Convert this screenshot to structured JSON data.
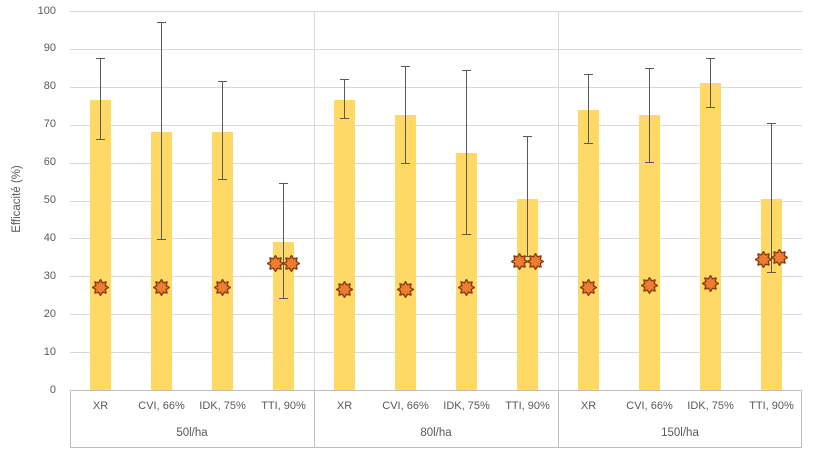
{
  "chart_data": {
    "type": "bar",
    "title": "",
    "ylabel": "Efficacité (%)",
    "xlabel": "",
    "ylim": [
      0,
      100
    ],
    "yticks": [
      0,
      10,
      20,
      30,
      40,
      50,
      60,
      70,
      80,
      90,
      100
    ],
    "grid": "horizontal",
    "legend": "none",
    "bar_color": "#FFD966",
    "error_bar_color": "#595959",
    "marker_fill": "#ED7D31",
    "marker_stroke": "#8A3B10",
    "marker_shape": "8-point-star",
    "groups": [
      {
        "label": "50l/ha",
        "bars": [
          {
            "label": "XR",
            "value": 76.5,
            "err_low": 66,
            "err_high": 87.5,
            "markers": [
              27
            ]
          },
          {
            "label": "CVI, 66%",
            "value": 68,
            "err_low": 39.5,
            "err_high": 97,
            "markers": [
              27
            ]
          },
          {
            "label": "IDK, 75%",
            "value": 68,
            "err_low": 55.5,
            "err_high": 81.5,
            "markers": [
              27
            ]
          },
          {
            "label": "TTI, 90%",
            "value": 39,
            "err_low": 24,
            "err_high": 54.5,
            "markers": [
              33.5,
              33.5
            ]
          }
        ]
      },
      {
        "label": "80l/ha",
        "bars": [
          {
            "label": "XR",
            "value": 76.5,
            "err_low": 71.5,
            "err_high": 82,
            "markers": [
              26.5
            ]
          },
          {
            "label": "CVI, 66%",
            "value": 72.5,
            "err_low": 59.5,
            "err_high": 85.5,
            "markers": [
              26.5
            ]
          },
          {
            "label": "IDK, 75%",
            "value": 62.5,
            "err_low": 41,
            "err_high": 84.5,
            "markers": [
              27
            ]
          },
          {
            "label": "TTI, 90%",
            "value": 50.5,
            "err_low": 35,
            "err_high": 67,
            "markers": [
              34,
              34
            ]
          }
        ]
      },
      {
        "label": "150l/ha",
        "bars": [
          {
            "label": "XR",
            "value": 74,
            "err_low": 65,
            "err_high": 83.5,
            "markers": [
              27
            ]
          },
          {
            "label": "CVI, 66%",
            "value": 72.5,
            "err_low": 60,
            "err_high": 85,
            "markers": [
              27.5
            ]
          },
          {
            "label": "IDK, 75%",
            "value": 81,
            "err_low": 74.5,
            "err_high": 87.5,
            "markers": [
              28
            ]
          },
          {
            "label": "TTI, 90%",
            "value": 50.5,
            "err_low": 31,
            "err_high": 70.5,
            "markers": [
              34.5,
              35
            ]
          }
        ]
      }
    ]
  }
}
